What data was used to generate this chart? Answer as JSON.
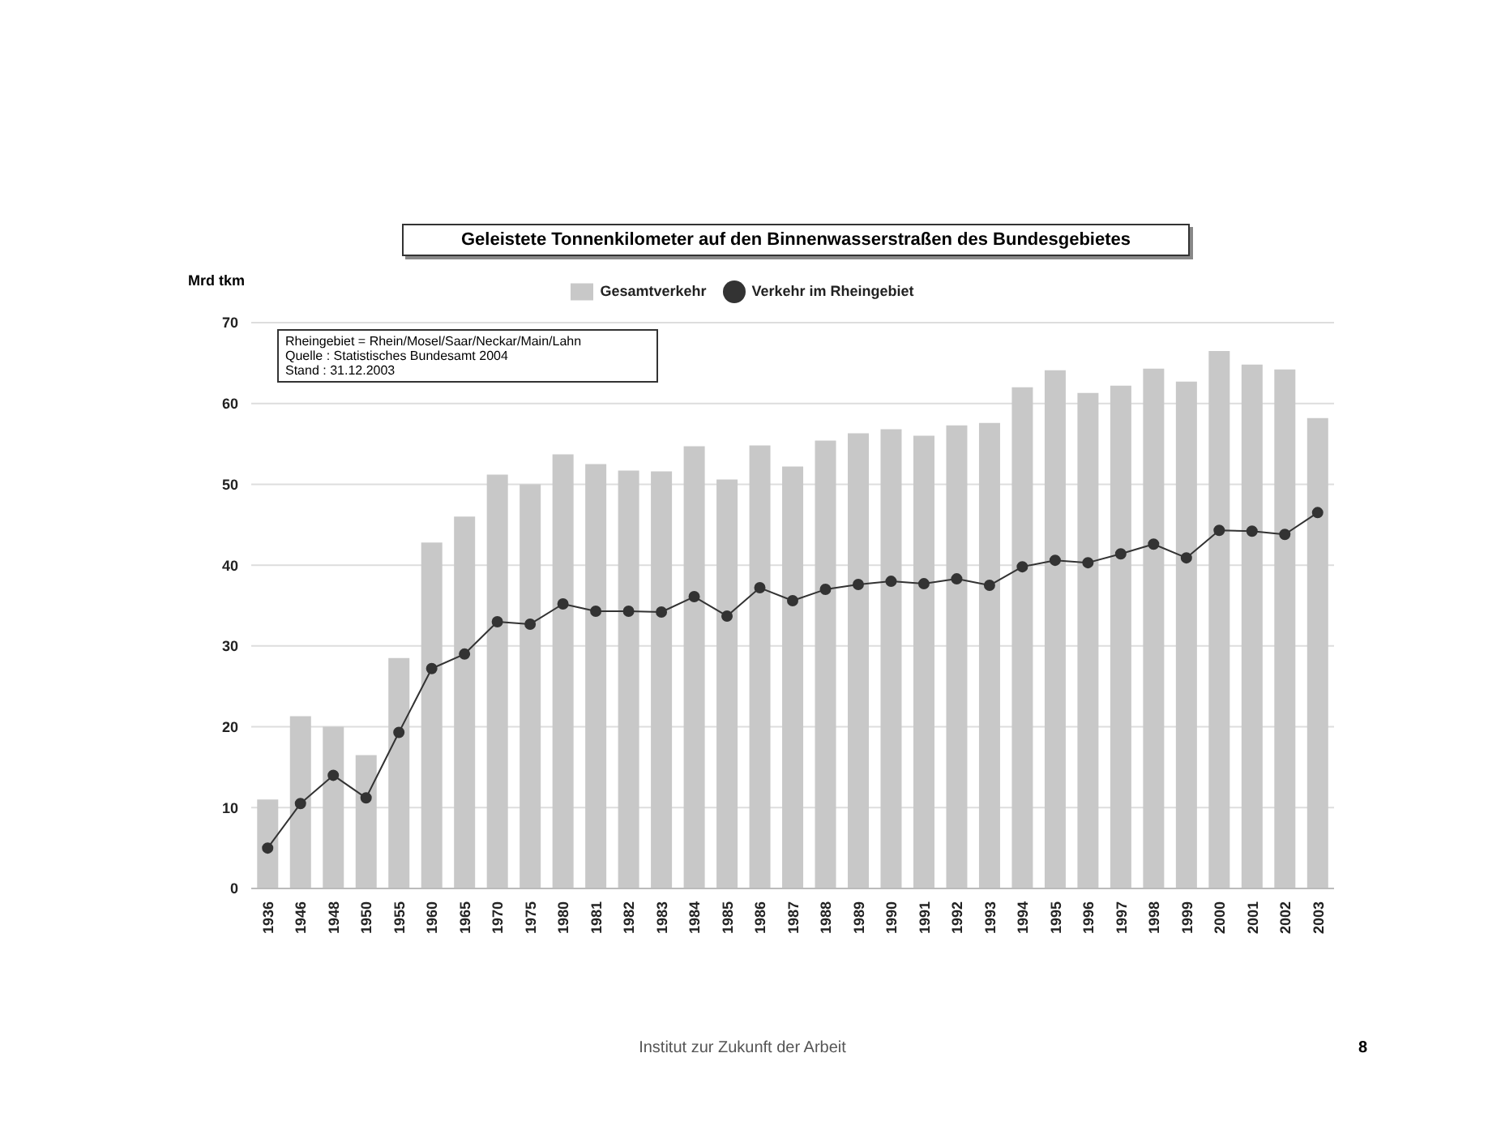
{
  "chart_data": {
    "type": "bar",
    "title": "Geleistete Tonnenkilometer auf den Binnenwasserstraßen des Bundesgebietes",
    "ylabel": "Mrd tkm",
    "categories": [
      "1936",
      "1946",
      "1948",
      "1950",
      "1955",
      "1960",
      "1965",
      "1970",
      "1975",
      "1980",
      "1981",
      "1982",
      "1983",
      "1984",
      "1985",
      "1986",
      "1987",
      "1988",
      "1989",
      "1990",
      "1991",
      "1992",
      "1993",
      "1994",
      "1995",
      "1996",
      "1997",
      "1998",
      "1999",
      "2000",
      "2001",
      "2002",
      "2003"
    ],
    "series": [
      {
        "name": "Gesamtverkehr",
        "color": "#c8c8c8",
        "values": [
          11,
          21.3,
          20,
          16.5,
          28.5,
          42.8,
          46,
          51.2,
          50,
          53.7,
          52.5,
          51.7,
          51.6,
          54.7,
          50.6,
          54.8,
          52.2,
          55.4,
          56.3,
          56.8,
          56,
          57.3,
          57.6,
          62,
          64.1,
          61.3,
          62.2,
          64.3,
          62.7,
          66.5,
          64.8,
          64.2,
          58.2
        ]
      },
      {
        "name": "Verkehr im Rheingebiet",
        "type": "line",
        "color": "#333333",
        "marker": "circle",
        "values": [
          5,
          10.5,
          14,
          11.2,
          19.3,
          27.2,
          29,
          33,
          32.7,
          35.2,
          34.3,
          34.3,
          34.2,
          36.1,
          33.7,
          37.2,
          35.6,
          37,
          37.6,
          38,
          37.7,
          38.3,
          37.5,
          39.8,
          40.6,
          40.3,
          41.4,
          42.6,
          40.9,
          44.3,
          44.2,
          43.8,
          46.5
        ]
      }
    ],
    "ylim": [
      0,
      70
    ],
    "yticks": [
      0,
      10,
      20,
      30,
      40,
      50,
      60,
      70
    ],
    "grid": "y",
    "legend": "top",
    "annotations": [
      "Rheingebiet = Rhein/Mosel/Saar/Neckar/Main/Lahn",
      "Quelle : Statistisches Bundesamt 2004",
      "Stand : 31.12.2003",
      "Institut zur Zukunft der Arbeit",
      "8"
    ]
  }
}
